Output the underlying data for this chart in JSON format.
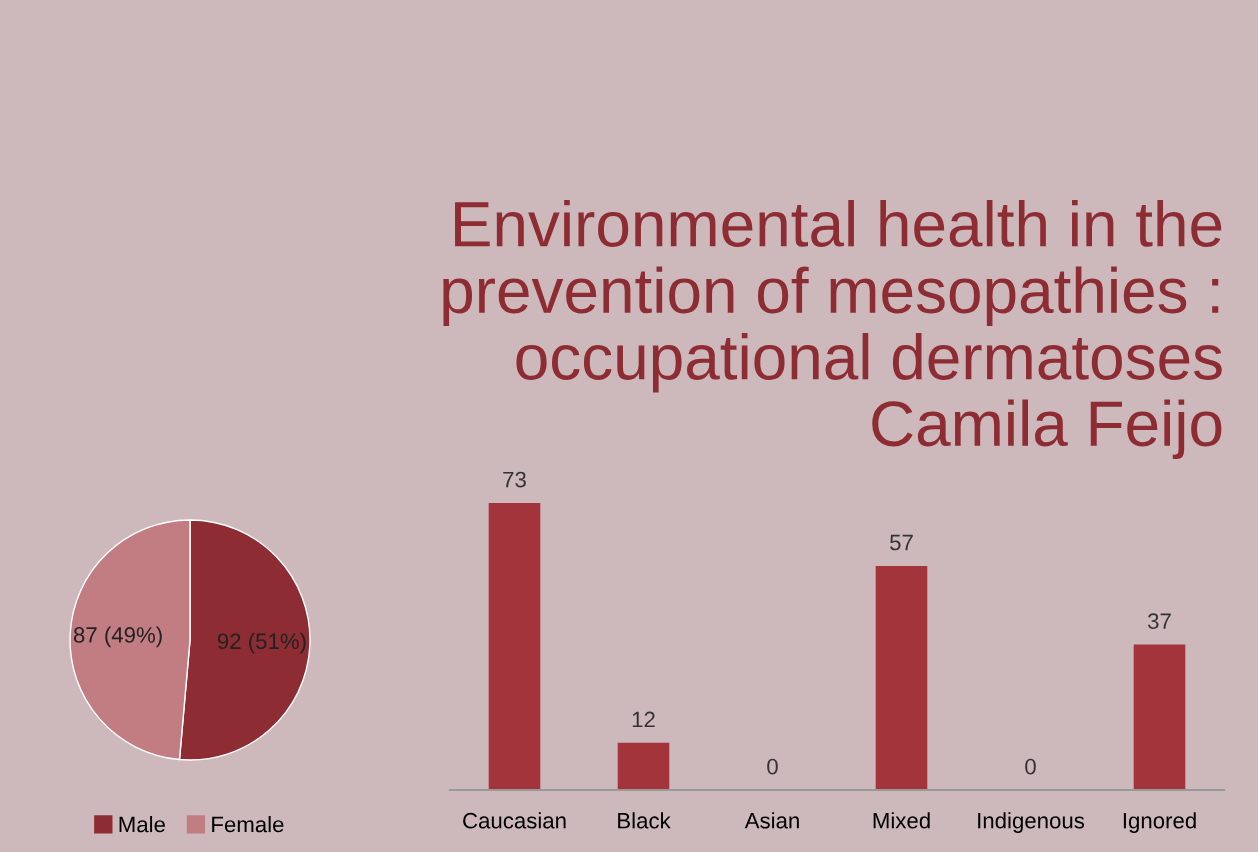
{
  "chart_data": [
    {
      "type": "pie",
      "categories": [
        "Male",
        "Female"
      ],
      "values": [
        92,
        87
      ],
      "colors": [
        "#8e2c33",
        "#c27d83"
      ],
      "value_labels": [
        "92 (51%)",
        "87 (49%)"
      ],
      "legend": "bottom"
    },
    {
      "type": "bar",
      "title": "Environmental health in the\nprevention of mesopathies :\noccupational dermatoses\nCamila Feijo",
      "categories": [
        "Caucasian",
        "Black",
        "Asian",
        "Mixed",
        "Indigenous",
        "Ignored"
      ],
      "values": [
        73,
        12,
        0,
        57,
        0,
        37
      ],
      "color": "#a3343b",
      "data_labels": true
    }
  ]
}
